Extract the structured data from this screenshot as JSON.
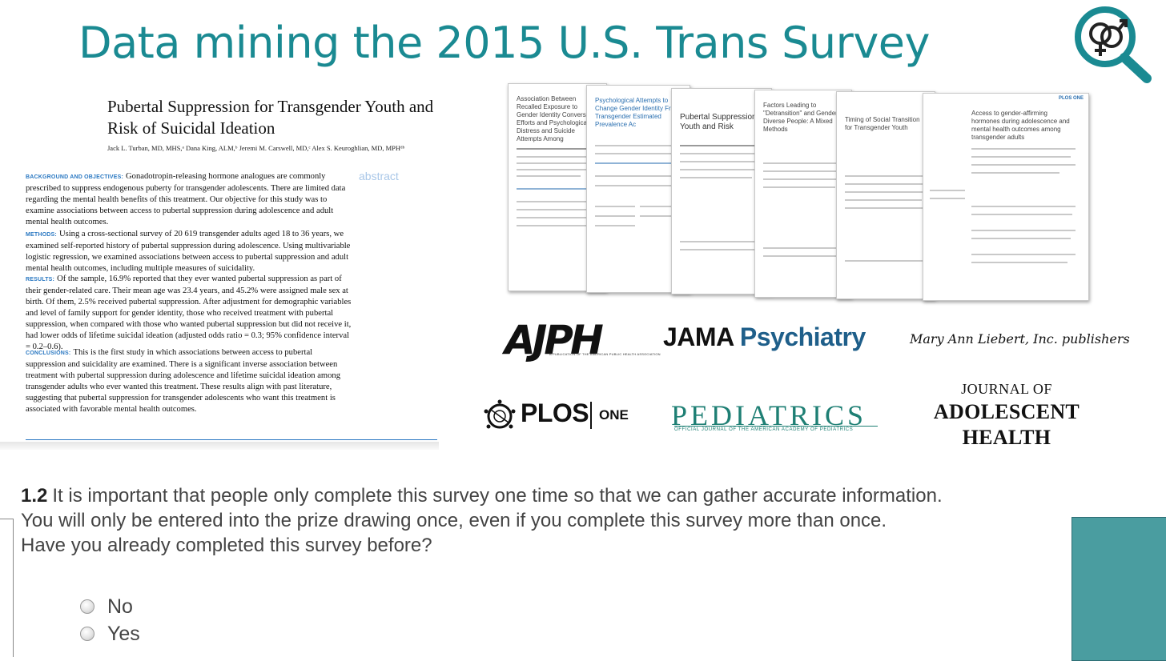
{
  "slide": {
    "title": "Data mining the 2015 U.S. Trans Survey",
    "accent_color": "#1a8a92",
    "logo_icon": "gender-symbols-magnifier-icon"
  },
  "paper": {
    "title": "Pubertal Suppression for Transgender Youth and Risk of Suicidal Ideation",
    "authors": "Jack L. Turban, MD, MHS,ᵃ Dana King, ALM,ᵇ Jeremi M. Carswell, MD,ᶜ Alex S. Keuroghlian, MD, MPHᵈᵇ",
    "abstract_tag": "abstract",
    "sections": [
      {
        "heading": "BACKGROUND AND OBJECTIVES:",
        "text": "Gonadotropin-releasing hormone analogues are commonly prescribed to suppress endogenous puberty for transgender adolescents. There are limited data regarding the mental health benefits of this treatment. Our objective for this study was to examine associations between access to pubertal suppression during adolescence and adult mental health outcomes."
      },
      {
        "heading": "METHODS:",
        "text": "Using a cross-sectional survey of 20 619 transgender adults aged 18 to 36 years, we examined self-reported history of pubertal suppression during adolescence. Using multivariable logistic regression, we examined associations between access to pubertal suppression and adult mental health outcomes, including multiple measures of suicidality."
      },
      {
        "heading": "RESULTS:",
        "text": "Of the sample, 16.9% reported that they ever wanted pubertal suppression as part of their gender-related care. Their mean age was 23.4 years, and 45.2% were assigned male sex at birth. Of them, 2.5% received pubertal suppression. After adjustment for demographic variables and level of family support for gender identity, those who received treatment with pubertal suppression, when compared with those who wanted pubertal suppression but did not receive it, had lower odds of lifetime suicidal ideation (adjusted odds ratio = 0.3; 95% confidence interval = 0.2–0.6)."
      },
      {
        "heading": "CONCLUSIONS:",
        "text": "This is the first study in which associations between access to pubertal suppression and suicidality are examined. There is a significant inverse association between treatment with pubertal suppression during adolescence and lifetime suicidal ideation among transgender adults who ever wanted this treatment. These results align with past literature, suggesting that pubertal suppression for transgender adolescents who want this treatment is associated with favorable mental health outcomes."
      }
    ]
  },
  "thumbnails": [
    {
      "title": "Association Between Recalled Exposure to Gender Identity Conversion Efforts and Psychological Distress and Suicide Attempts Among",
      "brand": ""
    },
    {
      "title": "Psychological Attempts to Change Gender Identity From Transgender Estimated Prevalence Ac",
      "brand": ""
    },
    {
      "title": "Pubertal Suppression Youth and Risk",
      "brand": ""
    },
    {
      "title": "Factors Leading to \"Detransition\" and Gender Diverse People: A Mixed Methods",
      "brand": ""
    },
    {
      "title": "Timing of Social Transition for Transgender Youth",
      "brand": ""
    },
    {
      "title": "Access to gender-affirming hormones during adolescence and mental health outcomes among transgender adults",
      "brand": "PLOS ONE"
    }
  ],
  "journals": {
    "ajph": "AJPH",
    "ajph_sub": "A PUBLICATION OF THE AMERICAN PUBLIC HEALTH ASSOCIATION",
    "jama_a": "JAMA",
    "jama_b": "Psychiatry",
    "liebert": "Mary Ann Liebert, Inc. publishers",
    "plos": "PLOS",
    "plos_one": "ONE",
    "pediatrics": "PEDIATRICS",
    "pediatrics_sub": "OFFICIAL JOURNAL OF THE AMERICAN ACADEMY OF PEDIATRICS",
    "jah_line1": "JOURNAL OF",
    "jah_line2": "ADOLESCENT",
    "jah_line3": "HEALTH"
  },
  "survey": {
    "number": "1.2",
    "line1": "It is important that people only complete this survey one time so that we can gather accurate information.",
    "line2": "You will only be entered into the prize drawing once, even if you complete this survey more than once.",
    "line3": "Have you already completed this survey before?",
    "options": [
      "No",
      "Yes"
    ]
  },
  "colors": {
    "teal_box": "#4a9da0",
    "pediatrics_green": "#1e7f74",
    "abstract_blue": "#2a78c2"
  }
}
